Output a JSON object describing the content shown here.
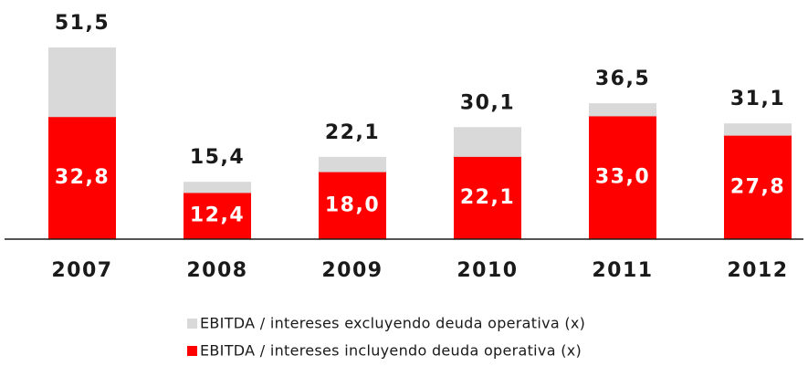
{
  "chart_data": {
    "type": "overlapping_bar",
    "categories": [
      "2007",
      "2008",
      "2009",
      "2010",
      "2011",
      "2012"
    ],
    "series": [
      {
        "name": "EBITDA / intereses excluyendo deuda operativa (x)",
        "color": "#d9d9d9",
        "values": [
          51.5,
          15.4,
          22.1,
          30.1,
          36.5,
          31.1
        ],
        "value_labels": [
          "51,5",
          "15,4",
          "22,1",
          "30,1",
          "36,5",
          "31,1"
        ]
      },
      {
        "name": "EBITDA / intereses incluyendo deuda operativa (x)",
        "color": "#ff0000",
        "values": [
          32.8,
          12.4,
          18.0,
          22.1,
          33.0,
          27.8
        ],
        "value_labels": [
          "32,8",
          "12,4",
          "18,0",
          "22,1",
          "33,0",
          "27,8"
        ]
      }
    ]
  }
}
